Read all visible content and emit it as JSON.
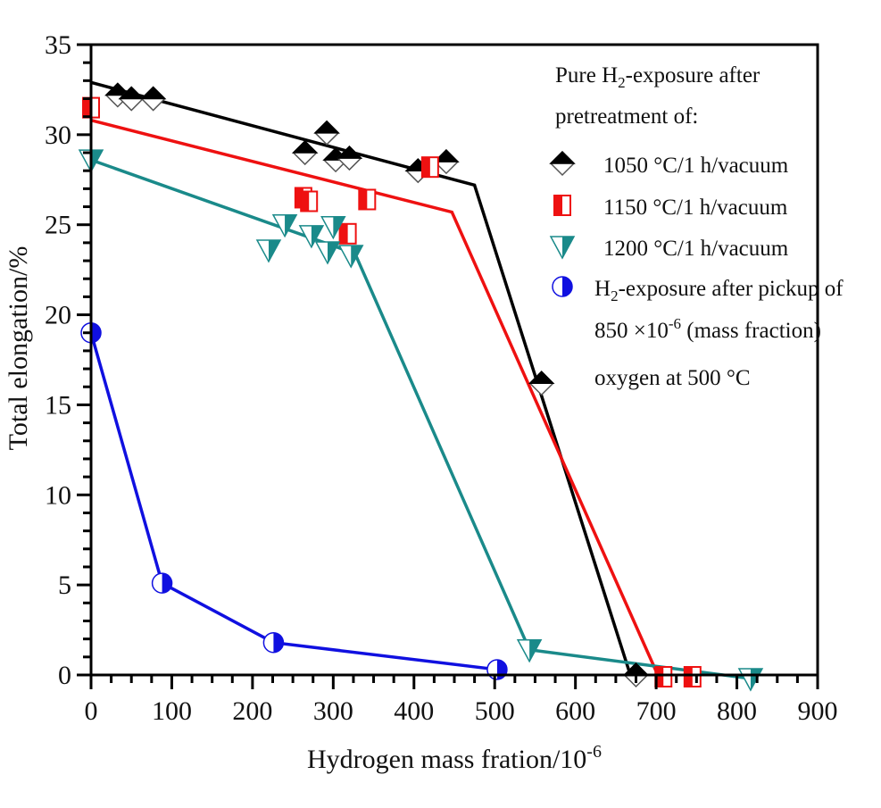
{
  "chart_data": {
    "type": "scatter",
    "title": "",
    "xlabel": "Hydrogen mass fration/10",
    "xlabel_sup": "-6",
    "ylabel": "Total elongation/%",
    "xlim": [
      0,
      900
    ],
    "ylim": [
      0,
      35
    ],
    "xticks": [
      0,
      100,
      200,
      300,
      400,
      500,
      600,
      700,
      800,
      900
    ],
    "yticks": [
      0,
      5,
      10,
      15,
      20,
      25,
      30,
      35
    ],
    "x_minor_step": 25,
    "y_minor_step": 1,
    "grid": false,
    "legend_position": "top-right",
    "legend_header": [
      "Pure H|2|-exposure after",
      "pretreatment of:"
    ],
    "series": [
      {
        "name": "1050 °C/1 h/vacuum",
        "marker": "diamond-top-filled",
        "color": "#000000",
        "points": [
          [
            33,
            32.2
          ],
          [
            50,
            32.0
          ],
          [
            77,
            32.0
          ],
          [
            265,
            29.0
          ],
          [
            292,
            30.1
          ],
          [
            303,
            28.6
          ],
          [
            320,
            28.7
          ],
          [
            405,
            28.0
          ],
          [
            440,
            28.5
          ],
          [
            675,
            0.0
          ],
          [
            558,
            16.2
          ]
        ],
        "fit_line": [
          [
            0,
            32.9
          ],
          [
            475,
            27.2
          ],
          [
            668,
            0.0
          ]
        ]
      },
      {
        "name": "1150 °C/1 h/vacuum",
        "marker": "square-left-filled",
        "color": "#ee1111",
        "points": [
          [
            0,
            31.5
          ],
          [
            263,
            26.5
          ],
          [
            270,
            26.3
          ],
          [
            342,
            26.4
          ],
          [
            318,
            24.5
          ],
          [
            420,
            28.2
          ],
          [
            709,
            -0.1
          ],
          [
            745,
            -0.1
          ]
        ],
        "fit_line": [
          [
            0,
            30.8
          ],
          [
            447,
            25.7
          ],
          [
            702,
            0.0
          ]
        ]
      },
      {
        "name": "1200 °C/1 h/vacuum",
        "marker": "triangle-down-right-filled",
        "color": "#1a8a8a",
        "points": [
          [
            0,
            28.6
          ],
          [
            220,
            23.6
          ],
          [
            240,
            25.0
          ],
          [
            273,
            24.4
          ],
          [
            300,
            24.9
          ],
          [
            293,
            23.5
          ],
          [
            322,
            23.3
          ],
          [
            543,
            1.4
          ],
          [
            817,
            -0.2
          ]
        ],
        "fit_line": [
          [
            0,
            28.6
          ],
          [
            327,
            23.4
          ],
          [
            543,
            1.4
          ],
          [
            817,
            -0.2
          ]
        ]
      },
      {
        "name": "H|2|-exposure after pickup of 850 ×10^-6 (mass fraction) oxygen at 500 °C",
        "legend_lines": [
          "H|2|-exposure after pickup of",
          "850 ×10",
          "oxygen at 500 °C"
        ],
        "legend_line2_sup": "-6",
        "legend_line2_tail": "  (mass fraction)",
        "marker": "circle-right-filled",
        "color": "#1010e0",
        "points": [
          [
            0,
            19.0
          ],
          [
            88,
            5.1
          ],
          [
            226,
            1.8
          ],
          [
            503,
            0.3
          ]
        ],
        "fit_line": [
          [
            0,
            19.0
          ],
          [
            88,
            5.1
          ],
          [
            226,
            1.8
          ],
          [
            503,
            0.3
          ]
        ]
      }
    ]
  }
}
